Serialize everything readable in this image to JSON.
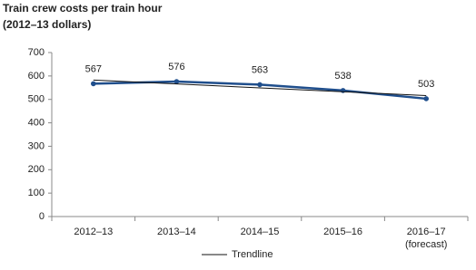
{
  "chart_data": {
    "type": "line",
    "title": "Train crew costs per train hour",
    "subtitle": "(2012–13 dollars)",
    "categories": [
      "2012–13",
      "2013–14",
      "2014–15",
      "2015–16",
      "2016–17 (forecast)"
    ],
    "series": [
      {
        "color": "#1f4e8c",
        "values": [
          567,
          576,
          563,
          538,
          503
        ],
        "data_labels": true
      },
      {
        "name": "Trendline",
        "color": "#111111",
        "values": [
          582.6,
          566,
          549.4,
          532.8,
          516.2
        ]
      }
    ],
    "ylim": [
      0,
      700
    ],
    "yticks": [
      0,
      100,
      200,
      300,
      400,
      500,
      600,
      700
    ],
    "grid": false,
    "legend": "bottom"
  }
}
